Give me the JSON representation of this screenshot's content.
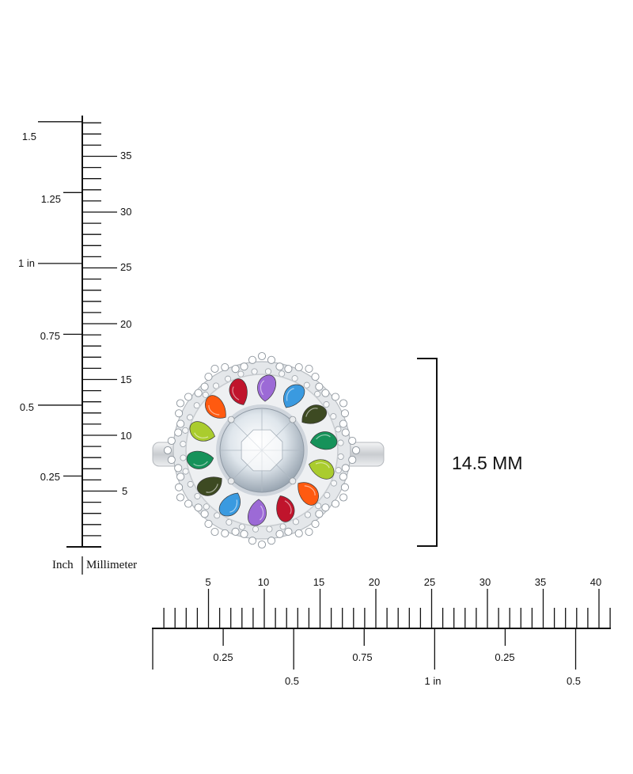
{
  "vertical_ruler": {
    "inch_labels": [
      "1.5",
      "1.25",
      "1 in",
      "0.75",
      "0.5",
      "0.25"
    ],
    "mm_labels": [
      "35",
      "30",
      "25",
      "20",
      "15",
      "10",
      "5"
    ],
    "unit_inch": "Inch",
    "unit_mm": "Millimeter"
  },
  "horizontal_ruler": {
    "mm_labels": [
      "5",
      "10",
      "15",
      "20",
      "25",
      "30",
      "35",
      "40"
    ],
    "inch_labels_minor": [
      "0.25",
      "0.75",
      "0.25"
    ],
    "inch_labels_major": [
      "0.5",
      "1 in",
      "0.5"
    ]
  },
  "measurement": {
    "label": "14.5 MM"
  },
  "product": {
    "stone_colors": {
      "ruby": "#c0142c",
      "amethyst": "#9c6ad6",
      "blue_topaz": "#3a9ae0",
      "tourmaline": "#3d4a22",
      "emerald": "#16925a",
      "peridot": "#aacc2e",
      "fire_opal": "#ff5a10",
      "center": "#e9eef3",
      "metal": "#d6d9dc"
    }
  }
}
